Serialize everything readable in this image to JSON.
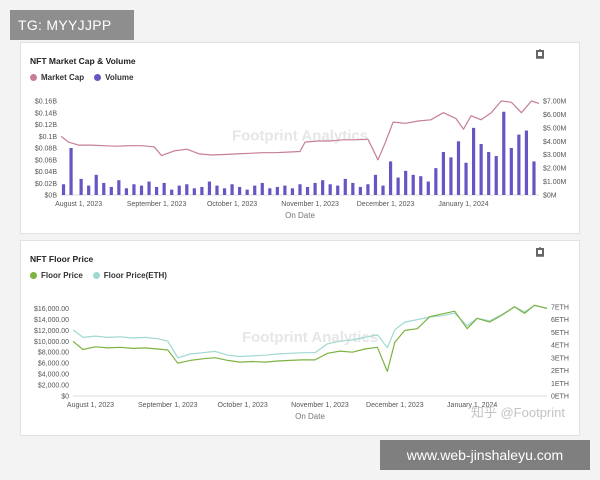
{
  "tg_label": "TG: MYYJJPP",
  "site_label": "www.web-jinshaleyu.com",
  "watermark_brand": "知乎 @Footprint",
  "chart_watermark": "Footprint Analytics",
  "colors": {
    "market_cap": "#c77f95",
    "volume": "#6655c2",
    "floor_price": "#7cb342",
    "floor_price_eth": "#9fd9d0"
  },
  "chart_data": [
    {
      "type": "bar",
      "title": "NFT Market Cap & Volume",
      "xlabel": "On Date",
      "x_ticks": [
        "August 1, 2023",
        "September 1, 2023",
        "October 1, 2023",
        "November 1, 2023",
        "December 1, 2023",
        "January 1, 2024"
      ],
      "x_range": [
        "2023-07-25",
        "2024-01-31"
      ],
      "y_left_ticks": [
        "$0B",
        "$0.02B",
        "$0.04B",
        "$0.06B",
        "$0.08B",
        "$0.1B",
        "$0.12B",
        "$0.14B",
        "$0.16B"
      ],
      "y_left_range": [
        0,
        0.16
      ],
      "y_right_ticks": [
        "$0M",
        "$1.00M",
        "$2.00M",
        "$3.00M",
        "$4.00M",
        "$5.00M",
        "$6.00M",
        "$7.00M"
      ],
      "y_right_range": [
        0,
        7.0
      ],
      "series": [
        {
          "name": "Market Cap",
          "type": "line",
          "axis": "left",
          "x": [
            "2023-07-25",
            "2023-07-28",
            "2023-08-01",
            "2023-08-06",
            "2023-08-11",
            "2023-08-16",
            "2023-08-21",
            "2023-08-26",
            "2023-08-31",
            "2023-09-03",
            "2023-09-08",
            "2023-09-13",
            "2023-09-18",
            "2023-09-23",
            "2023-09-28",
            "2023-10-03",
            "2023-10-08",
            "2023-10-13",
            "2023-10-18",
            "2023-10-23",
            "2023-10-28",
            "2023-10-30",
            "2023-11-04",
            "2023-11-09",
            "2023-11-14",
            "2023-11-19",
            "2023-11-24",
            "2023-11-28",
            "2023-12-01",
            "2023-12-04",
            "2023-12-09",
            "2023-12-14",
            "2023-12-19",
            "2023-12-24",
            "2023-12-29",
            "2024-01-01",
            "2024-01-04",
            "2024-01-08",
            "2024-01-12",
            "2024-01-16",
            "2024-01-20",
            "2024-01-24",
            "2024-01-28",
            "2024-01-31"
          ],
          "values": [
            0.1,
            0.09,
            0.085,
            0.085,
            0.084,
            0.083,
            0.084,
            0.084,
            0.082,
            0.067,
            0.075,
            0.078,
            0.07,
            0.068,
            0.069,
            0.07,
            0.071,
            0.072,
            0.072,
            0.073,
            0.074,
            0.09,
            0.092,
            0.092,
            0.094,
            0.094,
            0.095,
            0.06,
            0.09,
            0.124,
            0.122,
            0.126,
            0.128,
            0.14,
            0.13,
            0.112,
            0.135,
            0.128,
            0.14,
            0.16,
            0.158,
            0.14,
            0.16,
            0.156
          ]
        },
        {
          "name": "Volume",
          "type": "bar",
          "axis": "right",
          "x": [
            "2023-07-26",
            "2023-07-29",
            "2023-08-02",
            "2023-08-05",
            "2023-08-08",
            "2023-08-11",
            "2023-08-14",
            "2023-08-17",
            "2023-08-20",
            "2023-08-23",
            "2023-08-26",
            "2023-08-29",
            "2023-09-01",
            "2023-09-04",
            "2023-09-07",
            "2023-09-10",
            "2023-09-13",
            "2023-09-16",
            "2023-09-19",
            "2023-09-22",
            "2023-09-25",
            "2023-09-28",
            "2023-10-01",
            "2023-10-04",
            "2023-10-07",
            "2023-10-10",
            "2023-10-13",
            "2023-10-16",
            "2023-10-19",
            "2023-10-22",
            "2023-10-25",
            "2023-10-28",
            "2023-10-31",
            "2023-11-03",
            "2023-11-06",
            "2023-11-09",
            "2023-11-12",
            "2023-11-15",
            "2023-11-18",
            "2023-11-21",
            "2023-11-24",
            "2023-11-27",
            "2023-11-30",
            "2023-12-03",
            "2023-12-06",
            "2023-12-09",
            "2023-12-12",
            "2023-12-15",
            "2023-12-18",
            "2023-12-21",
            "2023-12-24",
            "2023-12-27",
            "2023-12-30",
            "2024-01-02",
            "2024-01-05",
            "2024-01-08",
            "2024-01-11",
            "2024-01-14",
            "2024-01-17",
            "2024-01-20",
            "2024-01-23",
            "2024-01-26",
            "2024-01-29"
          ],
          "values": [
            0.8,
            3.5,
            1.2,
            0.7,
            1.5,
            0.9,
            0.6,
            1.1,
            0.5,
            0.8,
            0.7,
            1.0,
            0.6,
            0.9,
            0.4,
            0.7,
            0.8,
            0.5,
            0.6,
            1.0,
            0.7,
            0.5,
            0.8,
            0.6,
            0.4,
            0.7,
            0.9,
            0.5,
            0.6,
            0.7,
            0.5,
            0.8,
            0.6,
            0.9,
            1.1,
            0.8,
            0.7,
            1.2,
            0.9,
            0.6,
            0.8,
            1.5,
            0.7,
            2.5,
            1.3,
            1.8,
            1.5,
            1.4,
            1.0,
            2.0,
            3.2,
            2.8,
            4.0,
            2.4,
            5.0,
            3.8,
            3.2,
            2.9,
            6.2,
            3.5,
            4.5,
            4.8,
            2.5
          ]
        }
      ]
    },
    {
      "type": "line",
      "title": "NFT Floor Price",
      "xlabel": "On Date",
      "x_ticks": [
        "August 1, 2023",
        "September 1, 2023",
        "October 1, 2023",
        "November 1, 2023",
        "December 1, 2023",
        "January 1, 2024"
      ],
      "x_range": [
        "2023-07-25",
        "2024-01-31"
      ],
      "y_left_ticks": [
        "$0",
        "$2,000.00",
        "$4,000.00",
        "$6,000.00",
        "$8,000.00",
        "$10,000.00",
        "$12,000.00",
        "$14,000.00",
        "$16,000.00"
      ],
      "y_left_range": [
        0,
        17000
      ],
      "y_right_ticks": [
        "0ETH",
        "1ETH",
        "2ETH",
        "3ETH",
        "4ETH",
        "5ETH",
        "6ETH",
        "7ETH"
      ],
      "y_right_range": [
        0,
        7.3
      ],
      "series": [
        {
          "name": "Floor Price",
          "type": "line",
          "axis": "left",
          "x": [
            "2023-07-25",
            "2023-07-29",
            "2023-08-03",
            "2023-08-08",
            "2023-08-13",
            "2023-08-18",
            "2023-08-23",
            "2023-08-28",
            "2023-09-01",
            "2023-09-05",
            "2023-09-10",
            "2023-09-15",
            "2023-09-20",
            "2023-09-25",
            "2023-09-30",
            "2023-10-05",
            "2023-10-10",
            "2023-10-15",
            "2023-10-20",
            "2023-10-25",
            "2023-10-30",
            "2023-11-04",
            "2023-11-09",
            "2023-11-14",
            "2023-11-19",
            "2023-11-24",
            "2023-11-28",
            "2023-12-01",
            "2023-12-05",
            "2023-12-10",
            "2023-12-15",
            "2023-12-20",
            "2023-12-25",
            "2023-12-30",
            "2024-01-03",
            "2024-01-08",
            "2024-01-13",
            "2024-01-18",
            "2024-01-22",
            "2024-01-26",
            "2024-01-31"
          ],
          "values": [
            10000,
            8500,
            9000,
            8800,
            8900,
            8700,
            8800,
            8600,
            8400,
            6000,
            6500,
            6800,
            7000,
            6500,
            6200,
            6300,
            6200,
            6400,
            6500,
            6600,
            6600,
            7800,
            8200,
            8000,
            8600,
            8900,
            4500,
            9800,
            12000,
            12300,
            14500,
            15000,
            15500,
            12300,
            14200,
            13500,
            14800,
            16300,
            15100,
            16600,
            16000
          ]
        },
        {
          "name": "Floor Price(ETH)",
          "type": "line",
          "axis": "right",
          "x": [
            "2023-07-25",
            "2023-07-29",
            "2023-08-03",
            "2023-08-08",
            "2023-08-13",
            "2023-08-18",
            "2023-08-23",
            "2023-08-28",
            "2023-09-01",
            "2023-09-05",
            "2023-09-10",
            "2023-09-15",
            "2023-09-20",
            "2023-09-25",
            "2023-09-30",
            "2023-10-05",
            "2023-10-10",
            "2023-10-15",
            "2023-10-20",
            "2023-10-25",
            "2023-10-30",
            "2023-11-04",
            "2023-11-09",
            "2023-11-14",
            "2023-11-19",
            "2023-11-24",
            "2023-11-28",
            "2023-12-01",
            "2023-12-05",
            "2023-12-10",
            "2023-12-15",
            "2023-12-20",
            "2023-12-25",
            "2023-12-30",
            "2024-01-03",
            "2024-01-08",
            "2024-01-13",
            "2024-01-18",
            "2024-01-22",
            "2024-01-26",
            "2024-01-31"
          ],
          "values": [
            5.2,
            4.6,
            4.7,
            4.6,
            4.65,
            4.55,
            4.6,
            4.5,
            4.3,
            3.0,
            3.3,
            3.4,
            3.5,
            3.2,
            3.1,
            3.15,
            3.2,
            3.3,
            3.35,
            3.4,
            3.4,
            4.1,
            4.3,
            4.4,
            4.6,
            4.8,
            3.8,
            5.2,
            5.8,
            6.0,
            6.2,
            6.3,
            6.5,
            5.5,
            6.1,
            5.9,
            6.4,
            7.0,
            6.6,
            7.1,
            6.9
          ]
        }
      ]
    }
  ]
}
